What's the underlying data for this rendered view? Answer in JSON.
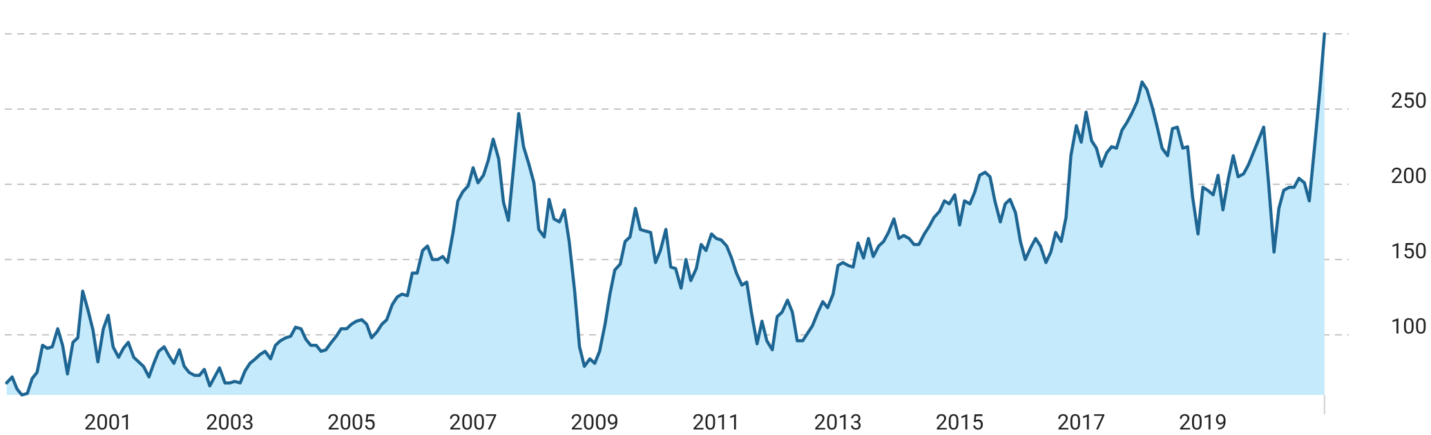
{
  "chart_data": {
    "type": "area",
    "color": "#1d6592",
    "area_color": "#c4eafb",
    "grid": true,
    "xlim": [
      1999.3,
      2021.4
    ],
    "xticks": [
      2001,
      2003,
      2005,
      2007,
      2009,
      2011,
      2013,
      2015,
      2017,
      2019
    ],
    "ylim": [
      60,
      300
    ],
    "yticks": [
      100,
      150,
      200,
      250
    ],
    "x": [
      1999.33,
      1999.42,
      1999.5,
      1999.58,
      1999.67,
      1999.75,
      1999.83,
      1999.92,
      2000,
      2000.08,
      2000.17,
      2000.25,
      2000.33,
      2000.42,
      2000.5,
      2000.58,
      2000.67,
      2000.75,
      2000.83,
      2000.92,
      2001,
      2001.08,
      2001.17,
      2001.25,
      2001.33,
      2001.42,
      2001.5,
      2001.58,
      2001.67,
      2001.75,
      2001.83,
      2001.92,
      2002,
      2002.08,
      2002.17,
      2002.25,
      2002.33,
      2002.42,
      2002.5,
      2002.58,
      2002.67,
      2002.75,
      2002.83,
      2002.92,
      2003,
      2003.08,
      2003.17,
      2003.25,
      2003.33,
      2003.42,
      2003.5,
      2003.58,
      2003.67,
      2003.75,
      2003.83,
      2003.92,
      2004,
      2004.08,
      2004.17,
      2004.25,
      2004.33,
      2004.42,
      2004.5,
      2004.58,
      2004.67,
      2004.75,
      2004.83,
      2004.92,
      2005,
      2005.08,
      2005.17,
      2005.25,
      2005.33,
      2005.42,
      2005.5,
      2005.58,
      2005.67,
      2005.75,
      2005.83,
      2005.92,
      2006,
      2006.08,
      2006.17,
      2006.25,
      2006.33,
      2006.42,
      2006.5,
      2006.58,
      2006.67,
      2006.75,
      2006.83,
      2006.92,
      2007,
      2007.08,
      2007.17,
      2007.25,
      2007.33,
      2007.42,
      2007.5,
      2007.58,
      2007.67,
      2007.75,
      2007.83,
      2007.92,
      2008,
      2008.08,
      2008.17,
      2008.25,
      2008.33,
      2008.42,
      2008.5,
      2008.58,
      2008.67,
      2008.75,
      2008.83,
      2008.92,
      2009,
      2009.08,
      2009.17,
      2009.25,
      2009.33,
      2009.42,
      2009.5,
      2009.58,
      2009.67,
      2009.75,
      2009.83,
      2009.92,
      2010,
      2010.08,
      2010.17,
      2010.25,
      2010.33,
      2010.42,
      2010.5,
      2010.58,
      2010.67,
      2010.75,
      2010.83,
      2010.92,
      2011,
      2011.08,
      2011.17,
      2011.25,
      2011.33,
      2011.42,
      2011.5,
      2011.58,
      2011.67,
      2011.75,
      2011.83,
      2011.92,
      2012,
      2012.08,
      2012.17,
      2012.25,
      2012.33,
      2012.42,
      2012.5,
      2012.58,
      2012.67,
      2012.75,
      2012.83,
      2012.92,
      2013,
      2013.08,
      2013.17,
      2013.25,
      2013.33,
      2013.42,
      2013.5,
      2013.58,
      2013.67,
      2013.75,
      2013.83,
      2013.92,
      2014,
      2014.08,
      2014.17,
      2014.25,
      2014.33,
      2014.42,
      2014.5,
      2014.58,
      2014.67,
      2014.75,
      2014.83,
      2014.92,
      2015,
      2015.08,
      2015.17,
      2015.25,
      2015.33,
      2015.42,
      2015.5,
      2015.58,
      2015.67,
      2015.75,
      2015.83,
      2015.92,
      2016,
      2016.08,
      2016.17,
      2016.25,
      2016.33,
      2016.42,
      2016.5,
      2016.58,
      2016.67,
      2016.75,
      2016.83,
      2016.92,
      2017,
      2017.08,
      2017.17,
      2017.25,
      2017.33,
      2017.42,
      2017.5,
      2017.58,
      2017.67,
      2017.75,
      2017.83,
      2017.92,
      2018,
      2018.08,
      2018.17,
      2018.25,
      2018.33,
      2018.42,
      2018.5,
      2018.58,
      2018.67,
      2018.75,
      2018.83,
      2018.92,
      2019,
      2019.08,
      2019.17,
      2019.25,
      2019.33,
      2019.42,
      2019.5,
      2019.58,
      2019.67,
      2019.75,
      2019.83,
      2019.92,
      2020,
      2020.08,
      2020.17,
      2020.25,
      2020.33,
      2020.42,
      2020.5,
      2020.58,
      2020.67,
      2020.75,
      2020.83,
      2020.92,
      2021
    ],
    "values": [
      68,
      72,
      64,
      60,
      61,
      71,
      75,
      93,
      91,
      92,
      104,
      93,
      74,
      95,
      98,
      129,
      116,
      103,
      82,
      104,
      113,
      92,
      85,
      91,
      95,
      85,
      82,
      79,
      72,
      81,
      89,
      92,
      86,
      81,
      90,
      79,
      75,
      73,
      73,
      77,
      66,
      72,
      78,
      68,
      68,
      69,
      68,
      76,
      81,
      84,
      87,
      89,
      84,
      93,
      96,
      98,
      99,
      105,
      104,
      97,
      93,
      93,
      89,
      90,
      95,
      99,
      104,
      104,
      107,
      109,
      110,
      107,
      98,
      102,
      107,
      110,
      120,
      125,
      127,
      126,
      141,
      141,
      156,
      159,
      150,
      150,
      152,
      148,
      168,
      189,
      195,
      199,
      211,
      201,
      206,
      216,
      230,
      217,
      188,
      176,
      213,
      247,
      225,
      213,
      201,
      170,
      165,
      190,
      177,
      175,
      183,
      162,
      129,
      92,
      79,
      84,
      81,
      89,
      107,
      127,
      143,
      147,
      162,
      165,
      184,
      170,
      169,
      168,
      148,
      156,
      170,
      145,
      144,
      131,
      150,
      136,
      144,
      160,
      156,
      167,
      164,
      163,
      159,
      151,
      141,
      133,
      135,
      114,
      94,
      109,
      96,
      90,
      112,
      115,
      123,
      115,
      96,
      96,
      101,
      106,
      115,
      122,
      118,
      127,
      146,
      148,
      146,
      145,
      161,
      151,
      164,
      152,
      159,
      162,
      168,
      177,
      164,
      166,
      164,
      160,
      160,
      167,
      172,
      178,
      182,
      189,
      187,
      193,
      173,
      189,
      187,
      195,
      206,
      208,
      205,
      189,
      175,
      187,
      190,
      181,
      162,
      150,
      158,
      164,
      159,
      148,
      155,
      168,
      162,
      178,
      219,
      239,
      228,
      248,
      229,
      224,
      212,
      221,
      225,
      224,
      236,
      241,
      247,
      255,
      268,
      263,
      251,
      238,
      224,
      219,
      237,
      238,
      224,
      225,
      192,
      167,
      198,
      196,
      193,
      206,
      183,
      204,
      219,
      205,
      207,
      213,
      221,
      230,
      238,
      201,
      155,
      184,
      196,
      198,
      198,
      204,
      201,
      189,
      222,
      261,
      300
    ]
  }
}
